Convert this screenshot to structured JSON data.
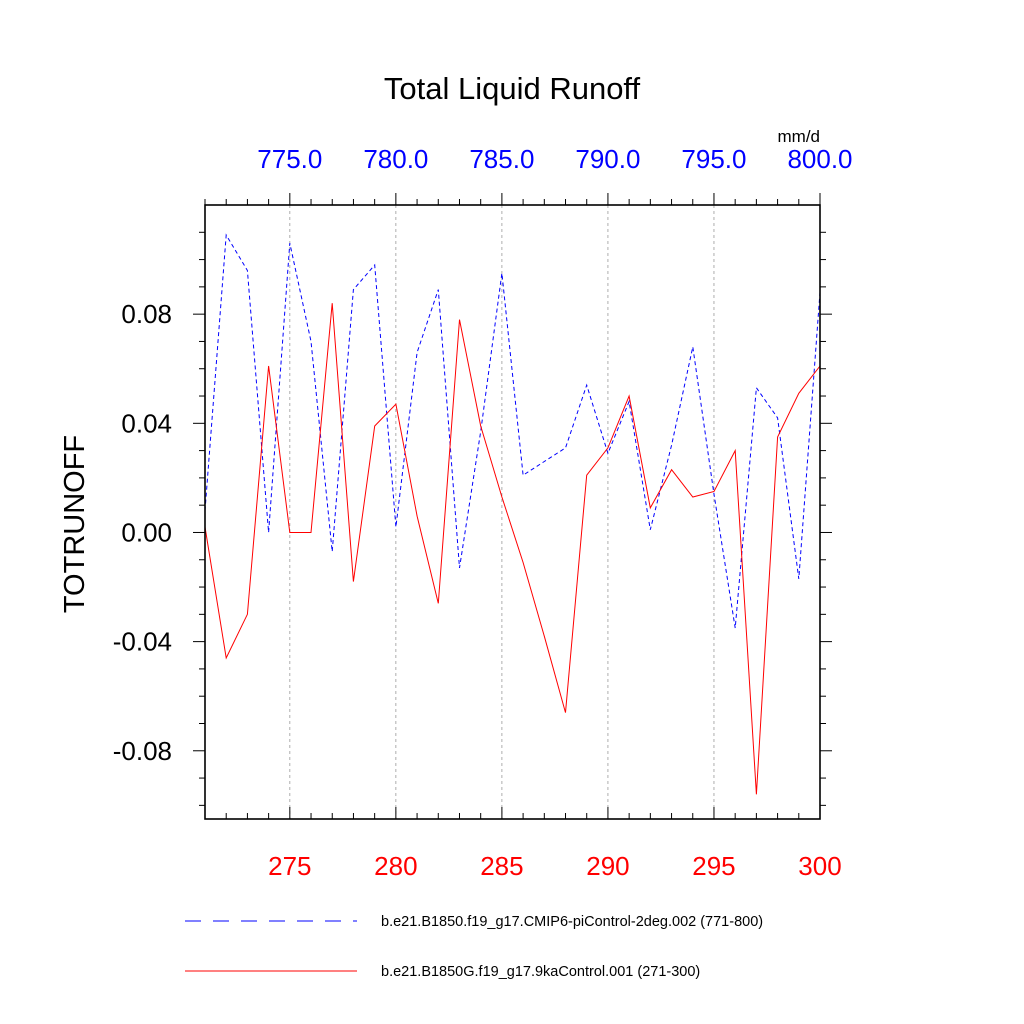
{
  "chart_data": {
    "type": "line",
    "title": "Total Liquid Runoff",
    "units": "mm/d",
    "ylabel": "TOTRUNOFF",
    "ylim": [
      -0.105,
      0.12
    ],
    "yticks": [
      -0.08,
      -0.04,
      0.0,
      0.04,
      0.08
    ],
    "ytick_labels": [
      "-0.08",
      "-0.04",
      "0.00",
      "0.04",
      "0.08"
    ],
    "x_bottom": {
      "range": [
        271,
        300
      ],
      "ticks": [
        275,
        280,
        285,
        290,
        295,
        300
      ],
      "tick_labels": [
        "275",
        "280",
        "285",
        "290",
        "295",
        "300"
      ],
      "color": "#ff0000"
    },
    "x_top": {
      "range": [
        771,
        800
      ],
      "ticks": [
        775,
        780,
        785,
        790,
        795,
        800
      ],
      "tick_labels": [
        "775.0",
        "780.0",
        "785.0",
        "790.0",
        "795.0",
        "800.0"
      ],
      "color": "#0000ff"
    },
    "grid": "vertical dashed at major ticks",
    "series": [
      {
        "name": "b.e21.B1850.f19_g17.CMIP6-piControl-2deg.002 (771-800)",
        "axis": "top",
        "color": "#0000ff",
        "dash": "dashed",
        "x": [
          771,
          772,
          773,
          774,
          775,
          776,
          777,
          778,
          779,
          780,
          781,
          782,
          783,
          784,
          785,
          786,
          787,
          788,
          789,
          790,
          791,
          792,
          793,
          794,
          795,
          796,
          797,
          798,
          799,
          800
        ],
        "values": [
          0.008,
          0.109,
          0.096,
          0.0,
          0.106,
          0.07,
          -0.007,
          0.089,
          0.098,
          0.002,
          0.066,
          0.089,
          -0.013,
          0.037,
          0.095,
          0.021,
          0.026,
          0.031,
          0.054,
          0.029,
          0.048,
          0.001,
          0.032,
          0.068,
          0.014,
          -0.035,
          0.053,
          0.042,
          -0.017,
          0.088
        ]
      },
      {
        "name": "b.e21.B1850G.f19_g17.9kaControl.001 (271-300)",
        "axis": "bottom",
        "color": "#ff0000",
        "dash": "solid",
        "x": [
          271,
          272,
          273,
          274,
          275,
          276,
          277,
          278,
          279,
          280,
          281,
          282,
          283,
          284,
          285,
          286,
          287,
          288,
          289,
          290,
          291,
          292,
          293,
          294,
          295,
          296,
          297,
          298,
          299,
          300
        ],
        "values": [
          0.002,
          -0.046,
          -0.03,
          0.061,
          0.0,
          0.0,
          0.084,
          -0.018,
          0.039,
          0.047,
          0.006,
          -0.026,
          0.078,
          0.039,
          0.013,
          -0.011,
          -0.038,
          -0.066,
          0.021,
          0.031,
          0.05,
          0.009,
          0.023,
          0.013,
          0.015,
          0.03,
          -0.096,
          0.035,
          0.051,
          0.061
        ]
      }
    ]
  }
}
